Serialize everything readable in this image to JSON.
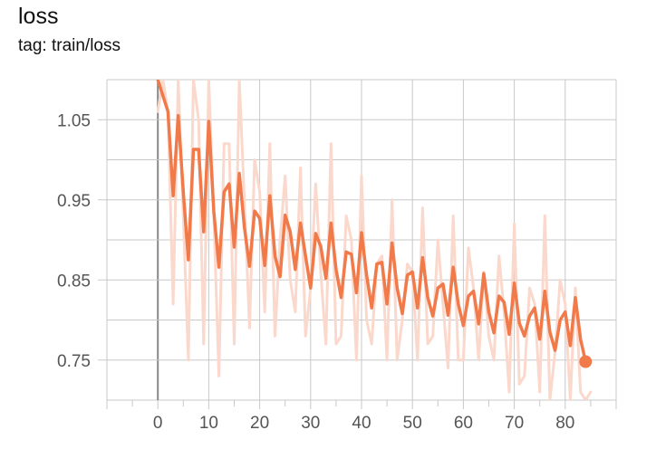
{
  "header": {
    "title": "loss",
    "subtitle": "tag: train/loss"
  },
  "chart_data": {
    "type": "line",
    "title": "loss",
    "subtitle": "tag: train/loss",
    "xlabel": "",
    "ylabel": "",
    "xlim": [
      -10,
      90
    ],
    "ylim": [
      0.7,
      1.1
    ],
    "xticks": [
      0,
      10,
      20,
      30,
      40,
      50,
      60,
      70,
      80
    ],
    "yticks": [
      0.75,
      0.85,
      0.95,
      1.05
    ],
    "grid": true,
    "colors": {
      "smoothed": "#f07a4a",
      "raw": "#fbd8cc",
      "grid": "#c8c8c8",
      "zero_axis": "#888888"
    },
    "series": [
      {
        "role": "raw",
        "x": [
          0,
          1,
          2,
          3,
          4,
          5,
          6,
          7,
          8,
          9,
          10,
          11,
          12,
          13,
          14,
          15,
          16,
          17,
          18,
          19,
          20,
          21,
          22,
          23,
          24,
          25,
          26,
          27,
          28,
          29,
          30,
          31,
          32,
          33,
          34,
          35,
          36,
          37,
          38,
          39,
          40,
          41,
          42,
          43,
          44,
          45,
          46,
          47,
          48,
          49,
          50,
          51,
          52,
          53,
          54,
          55,
          56,
          57,
          58,
          59,
          60,
          61,
          62,
          63,
          64,
          65,
          66,
          67,
          68,
          69,
          70,
          71,
          72,
          73,
          74,
          75,
          76,
          77,
          78,
          79,
          80,
          81,
          82,
          83,
          84,
          85
        ],
        "values": [
          1.06,
          1.1,
          1.06,
          0.82,
          1.1,
          0.93,
          0.75,
          1.1,
          1.05,
          0.77,
          1.1,
          0.93,
          0.73,
          1.02,
          1.02,
          0.77,
          1.1,
          0.95,
          0.79,
          1.0,
          0.96,
          0.81,
          1.02,
          0.78,
          0.9,
          0.98,
          0.85,
          0.81,
          0.99,
          0.78,
          0.84,
          0.97,
          0.86,
          0.77,
          1.02,
          0.77,
          0.78,
          0.93,
          0.9,
          0.75,
          0.98,
          0.8,
          0.77,
          0.87,
          0.88,
          0.75,
          0.95,
          0.75,
          0.8,
          0.87,
          0.86,
          0.75,
          0.94,
          0.77,
          0.78,
          0.9,
          0.82,
          0.74,
          0.93,
          0.75,
          0.75,
          0.89,
          0.84,
          0.75,
          0.86,
          0.78,
          0.75,
          0.88,
          0.81,
          0.71,
          0.92,
          0.72,
          0.73,
          0.84,
          0.82,
          0.71,
          0.93,
          0.7,
          0.76,
          0.85,
          0.82,
          0.7,
          0.84,
          0.71,
          0.7,
          0.71
        ]
      },
      {
        "role": "smoothed",
        "x": [
          0,
          1,
          2,
          3,
          4,
          5,
          6,
          7,
          8,
          9,
          10,
          11,
          12,
          13,
          14,
          15,
          16,
          17,
          18,
          19,
          20,
          21,
          22,
          23,
          24,
          25,
          26,
          27,
          28,
          29,
          30,
          31,
          32,
          33,
          34,
          35,
          36,
          37,
          38,
          39,
          40,
          41,
          42,
          43,
          44,
          45,
          46,
          47,
          48,
          49,
          50,
          51,
          52,
          53,
          54,
          55,
          56,
          57,
          58,
          59,
          60,
          61,
          62,
          63,
          64,
          65,
          66,
          67,
          68,
          69,
          70,
          71,
          72,
          73,
          74,
          75,
          76,
          77,
          78,
          79,
          80,
          81,
          82,
          83,
          84
        ],
        "values": [
          1.1,
          1.08,
          1.06,
          0.955,
          1.055,
          0.96,
          0.875,
          1.013,
          1.013,
          0.91,
          1.048,
          0.935,
          0.866,
          0.96,
          0.97,
          0.891,
          0.983,
          0.916,
          0.867,
          0.936,
          0.927,
          0.868,
          0.955,
          0.88,
          0.854,
          0.931,
          0.91,
          0.863,
          0.921,
          0.88,
          0.84,
          0.908,
          0.892,
          0.852,
          0.921,
          0.863,
          0.828,
          0.885,
          0.882,
          0.834,
          0.909,
          0.856,
          0.815,
          0.87,
          0.872,
          0.82,
          0.896,
          0.84,
          0.808,
          0.856,
          0.86,
          0.815,
          0.878,
          0.828,
          0.805,
          0.84,
          0.845,
          0.806,
          0.866,
          0.82,
          0.793,
          0.83,
          0.836,
          0.795,
          0.858,
          0.81,
          0.784,
          0.83,
          0.822,
          0.782,
          0.846,
          0.796,
          0.78,
          0.805,
          0.815,
          0.776,
          0.836,
          0.785,
          0.762,
          0.8,
          0.81,
          0.768,
          0.828,
          0.776,
          0.748
        ]
      }
    ],
    "last_point": {
      "x": 84,
      "y": 0.748
    }
  }
}
